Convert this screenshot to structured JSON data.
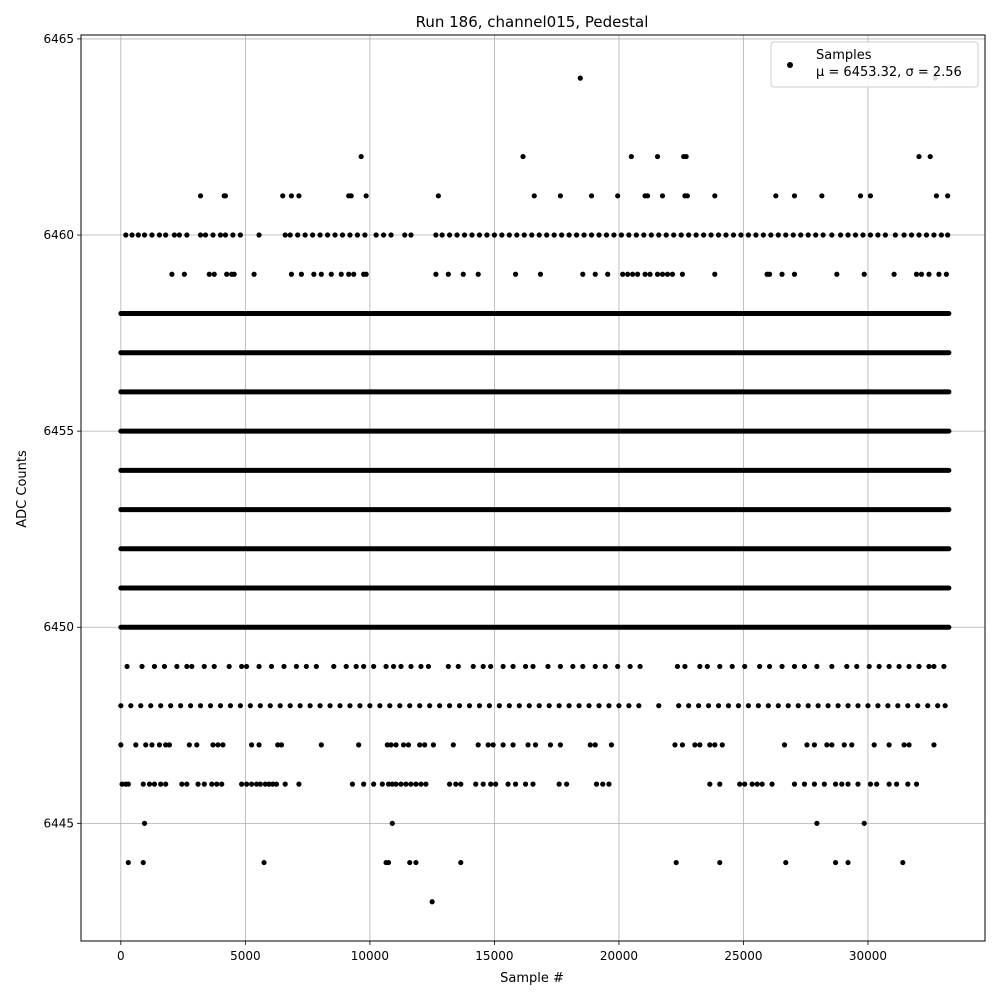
{
  "chart_data": {
    "type": "scatter",
    "title": "Run 186, channel015, Pedestal",
    "xlabel": "Sample #",
    "ylabel": "ADC Counts",
    "xlim": [
      -1600,
      34700
    ],
    "ylim": [
      6442,
      6465.1
    ],
    "xticks": [
      0,
      5000,
      10000,
      15000,
      20000,
      25000,
      30000
    ],
    "yticks": [
      6445,
      6450,
      6455,
      6460,
      6465
    ],
    "grid": true,
    "legend_position": "upper-right",
    "marker_color": "#000000",
    "x_range": [
      0,
      33250
    ],
    "series": [
      {
        "name": "Samples",
        "stats_label": "μ = 6453.32, σ = 2.56",
        "levels": [
          {
            "y": 6443,
            "x": [
              12500
            ]
          },
          {
            "y": 6444,
            "x": [
              300,
              900,
              5750,
              10650,
              10750,
              11600,
              11850,
              13650,
              22300,
              24050,
              26700,
              28700,
              29200,
              31400
            ]
          },
          {
            "y": 6445,
            "x": [
              950,
              10900,
              27950,
              29850
            ]
          },
          {
            "y": 6446,
            "x": [
              50,
              200,
              300,
              900,
              1150,
              1350,
              1600,
              1800,
              2450,
              2650,
              3100,
              3350,
              3650,
              3850,
              4050,
              4850,
              5050,
              5250,
              5450,
              5600,
              5800,
              5950,
              6100,
              6250,
              6600,
              7150,
              9300,
              9750,
              10150,
              10500,
              10750,
              10900,
              11050,
              11250,
              11450,
              11650,
              11850,
              12050,
              12250,
              13200,
              13450,
              13650,
              14250,
              14550,
              14850,
              15050,
              15550,
              15850,
              16250,
              16550,
              17600,
              17900,
              19100,
              19350,
              19600,
              23650,
              24050,
              24850,
              25050,
              25350,
              25550,
              25750,
              26150,
              27050,
              27450,
              27850,
              28250,
              28700,
              28950,
              29200,
              29600,
              30100,
              30350,
              30850,
              31150,
              31600,
              31950
            ]
          },
          {
            "y": 6447,
            "x": [
              0,
              600,
              1000,
              1250,
              1550,
              1800,
              1950,
              2750,
              3050,
              3700,
              3900,
              4100,
              5250,
              5550,
              6300,
              6450,
              8050,
              9550,
              10700,
              10850,
              11050,
              11350,
              11550,
              12000,
              12200,
              12550,
              13350,
              14350,
              14750,
              14950,
              15350,
              15750,
              16350,
              16650,
              17250,
              17650,
              18850,
              19050,
              19700,
              22250,
              22550,
              23050,
              23250,
              23650,
              23850,
              24150,
              26650,
              27550,
              27850,
              28350,
              28550,
              29050,
              29350,
              30250,
              30850,
              31450,
              31650,
              32650
            ]
          },
          {
            "y": 6449,
            "x": [
              250,
              850,
              1350,
              1750,
              2250,
              2650,
              2850,
              3350,
              3750,
              4350,
              4850,
              5050,
              5550,
              6050,
              6550,
              7050,
              7450,
              7850,
              8550,
              9050,
              9450,
              9750,
              10150,
              10650,
              10950,
              11250,
              11650,
              12050,
              12350,
              13150,
              13550,
              14150,
              14550,
              14850,
              15350,
              15750,
              16250,
              16550,
              17150,
              17650,
              18150,
              18550,
              19050,
              19450,
              19950,
              20450,
              20850,
              22350,
              22650,
              23250,
              23550,
              24050,
              24550,
              25050,
              25650,
              26050,
              26550,
              27050,
              27450,
              27950,
              28550,
              29150,
              29550,
              30050,
              30450,
              30850,
              31250,
              31650,
              32050,
              32450,
              32650,
              33050
            ]
          },
          {
            "y": 6448,
            "x": [
              0,
              400,
              800,
              1200,
              1600,
              2000,
              2400,
              2800,
              3200,
              3600,
              4000,
              4400,
              4800,
              5200,
              5600,
              6000,
              6400,
              6800,
              7200,
              7600,
              8000,
              8400,
              8800,
              9200,
              9600,
              10000,
              10400,
              10800,
              11200,
              11600,
              12000,
              12400,
              12800,
              13200,
              13600,
              14000,
              14400,
              14800,
              15200,
              15600,
              16000,
              16400,
              16800,
              17200,
              17600,
              18000,
              18400,
              18800,
              19200,
              19600,
              20000,
              20400,
              20800,
              21600,
              22400,
              22800,
              23200,
              23600,
              24000,
              24400,
              24800,
              25200,
              25600,
              26000,
              26400,
              26800,
              27200,
              27600,
              28000,
              28400,
              28800,
              29200,
              29600,
              30000,
              30400,
              30800,
              31200,
              31600,
              32000,
              32400,
              32800,
              33100
            ]
          },
          {
            "y": 6450,
            "dense": true,
            "x_start": 0,
            "x_end": 33250
          },
          {
            "y": 6451,
            "dense": true,
            "x_start": 0,
            "x_end": 33250
          },
          {
            "y": 6452,
            "dense": true,
            "x_start": 0,
            "x_end": 33250
          },
          {
            "y": 6453,
            "dense": true,
            "x_start": 0,
            "x_end": 33250
          },
          {
            "y": 6454,
            "dense": true,
            "x_start": 0,
            "x_end": 33250
          },
          {
            "y": 6455,
            "dense": true,
            "x_start": 0,
            "x_end": 33250
          },
          {
            "y": 6456,
            "dense": true,
            "x_start": 0,
            "x_end": 33250
          },
          {
            "y": 6457,
            "dense": true,
            "x_start": 0,
            "x_end": 33250
          },
          {
            "y": 6458,
            "dense": true,
            "x_start": 0,
            "x_end": 33250
          },
          {
            "y": 6459,
            "x": [
              2050,
              2550,
              3550,
              3750,
              4250,
              4450,
              4550,
              5350,
              6850,
              7250,
              7750,
              8050,
              8450,
              8850,
              9150,
              9350,
              9750,
              9850,
              12650,
              13150,
              13750,
              14350,
              15850,
              16850,
              18550,
              19050,
              19550,
              20150,
              20350,
              20550,
              20750,
              21050,
              21250,
              21550,
              21750,
              21950,
              22150,
              22550,
              23850,
              25950,
              26050,
              26550,
              27050,
              28750,
              29850,
              31050,
              31950,
              32150,
              32450,
              32850,
              33150
            ]
          },
          {
            "y": 6460,
            "x": [
              200,
              450,
              700,
              950,
              1250,
              1550,
              1800,
              2150,
              2350,
              2650,
              3200,
              3400,
              3700,
              4000,
              4200,
              4500,
              4800,
              5550,
              6600,
              6800,
              7100,
              7400,
              7700,
              8000,
              8300,
              8600,
              8900,
              9200,
              9500,
              9800,
              10250,
              10550,
              10850,
              11400,
              11650,
              12650,
              12900,
              13200,
              13500,
              13800,
              14100,
              14400,
              14700,
              15000,
              15300,
              15600,
              15900,
              16200,
              16500,
              16800,
              17100,
              17400,
              17700,
              18000,
              18300,
              18600,
              18900,
              19200,
              19500,
              19800,
              20100,
              20400,
              20700,
              21000,
              21300,
              21600,
              21900,
              22200,
              22500,
              22800,
              23100,
              23400,
              23700,
              24000,
              24300,
              24600,
              24900,
              25200,
              25500,
              25800,
              26100,
              26400,
              26700,
              27000,
              27300,
              27600,
              27900,
              28200,
              28550,
              28900,
              29200,
              29500,
              29800,
              30100,
              30400,
              30700,
              31100,
              31450,
              31750,
              32050,
              32350,
              32650,
              32950,
              33200
            ]
          },
          {
            "y": 6461,
            "x": [
              3200,
              4150,
              4200,
              6500,
              6850,
              7150,
              9150,
              9250,
              9850,
              12750,
              16600,
              17650,
              18900,
              19950,
              21050,
              21150,
              21750,
              22650,
              22750,
              23850,
              26300,
              27050,
              28150,
              29700,
              30100,
              32750,
              33200
            ]
          },
          {
            "y": 6462,
            "x": [
              9650,
              16150,
              20500,
              21550,
              22600,
              22700,
              32050,
              32500
            ]
          },
          {
            "y": 6464,
            "x": [
              18450,
              32700
            ]
          }
        ]
      }
    ]
  }
}
